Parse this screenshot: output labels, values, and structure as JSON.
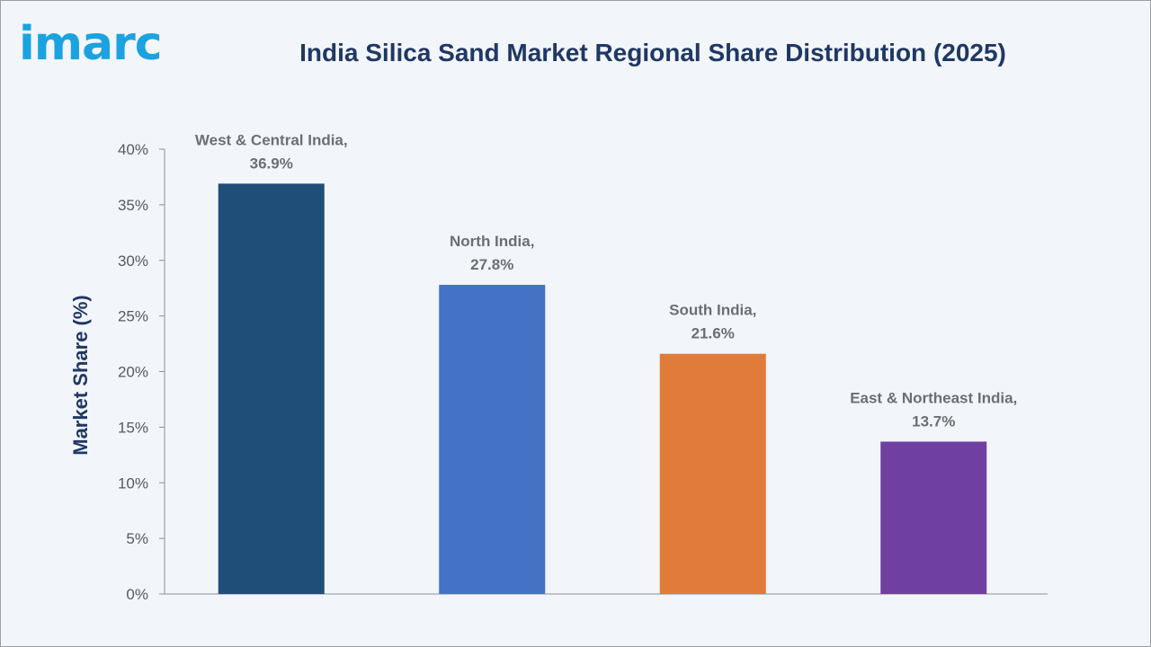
{
  "logo": {
    "text": "imarc"
  },
  "chart_data": {
    "type": "bar",
    "title": "India Silica Sand Market Regional Share Distribution (2025)",
    "ylabel": "Market Share (%)",
    "xlabel": "",
    "categories": [
      "West & Central India",
      "North India",
      "South India",
      "East & Northeast India"
    ],
    "values": [
      36.9,
      27.8,
      21.6,
      13.7
    ],
    "data_labels": [
      "36.9%",
      "27.8%",
      "21.6%",
      "13.7%"
    ],
    "colors": [
      "#1f4e79",
      "#4472c4",
      "#e07b39",
      "#7040a0"
    ],
    "ylim": [
      0,
      40
    ],
    "yticks": [
      0,
      5,
      10,
      15,
      20,
      25,
      30,
      35,
      40
    ],
    "ytick_labels": [
      "0%",
      "5%",
      "10%",
      "15%",
      "20%",
      "25%",
      "30%",
      "35%",
      "40%"
    ],
    "grid": false,
    "legend": "none"
  }
}
